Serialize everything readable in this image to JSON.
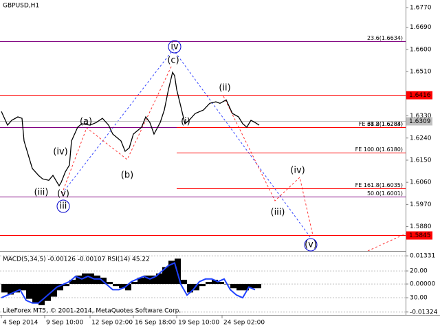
{
  "chart_data": [
    {
      "type": "line",
      "title": "GBPUSD,H1",
      "color": "#000000",
      "x": [
        0,
        3,
        5,
        8,
        10,
        11,
        13,
        15,
        18,
        20,
        23,
        25,
        28,
        29,
        31,
        33,
        34,
        37,
        39,
        43,
        46,
        49,
        52,
        54,
        58,
        60,
        62,
        64,
        68,
        70,
        72,
        74,
        77,
        79,
        81,
        83,
        84,
        85,
        87,
        89,
        91,
        94,
        98,
        101,
        104,
        106,
        109,
        112,
        115,
        117,
        119,
        121,
        123,
        125
      ],
      "values": [
        1.6348,
        1.6292,
        1.6312,
        1.6326,
        1.632,
        1.6228,
        1.6172,
        1.6116,
        1.6088,
        1.6074,
        1.6068,
        1.6088,
        1.6046,
        1.606,
        1.6102,
        1.613,
        1.6228,
        1.6284,
        1.6298,
        1.6292,
        1.6303,
        1.632,
        1.6292,
        1.6256,
        1.6228,
        1.6186,
        1.62,
        1.6256,
        1.6284,
        1.6326,
        1.6303,
        1.6256,
        1.6303,
        1.6354,
        1.6437,
        1.6507,
        1.6493,
        1.6437,
        1.6368,
        1.6298,
        1.6312,
        1.634,
        1.6354,
        1.6381,
        1.6387,
        1.6381,
        1.6395,
        1.634,
        1.6326,
        1.6298,
        1.6284,
        1.6312,
        1.6303,
        1.6292
      ],
      "xlim": [
        0,
        196
      ],
      "ylim": [
        1.5781,
        1.6801
      ],
      "yticks": [
        {
          "value": 1.677,
          "label": "1.6770"
        },
        {
          "value": 1.669,
          "label": "1.6690"
        },
        {
          "value": 1.66,
          "label": "1.6600"
        },
        {
          "value": 1.651,
          "label": "1.6510"
        },
        {
          "value": 1.633,
          "label": "1.6330"
        },
        {
          "value": 1.624,
          "label": "1.6240"
        },
        {
          "value": 1.615,
          "label": "1.6150"
        },
        {
          "value": 1.606,
          "label": "1.6060"
        },
        {
          "value": 1.597,
          "label": "1.5970"
        },
        {
          "value": 1.588,
          "label": "1.5880"
        }
      ],
      "xticks": [
        {
          "value": 0,
          "label": "4 Sep 2014"
        },
        {
          "value": 21,
          "label": "9 Sep 10:00"
        },
        {
          "value": 43,
          "label": "12 Sep 02:00"
        },
        {
          "value": 64,
          "label": "16 Sep 18:00"
        },
        {
          "value": 85,
          "label": "19 Sep 10:00"
        },
        {
          "value": 107,
          "label": "24 Sep 02:00"
        }
      ],
      "levels": [
        {
          "label": "23.6(1.6634)",
          "value": 1.6634,
          "color": "#800080"
        },
        {
          "label": "38.2(1.6284)",
          "value": 1.6284,
          "color": "#800080"
        },
        {
          "label": "FE 61.8(1.6283)",
          "value": 1.6283,
          "color": "#ff0000",
          "x0": 85
        },
        {
          "label": "FE 100.0(1.6180)",
          "value": 1.618,
          "color": "#ff0000",
          "x0": 85
        },
        {
          "label": "FE 161.8(1.6035)",
          "value": 1.6035,
          "color": "#ff0000",
          "x0": 85
        },
        {
          "label": "50.0(1.6001)",
          "value": 1.6001,
          "color": "#800080"
        }
      ],
      "price_labels": [
        {
          "value": 1.6416,
          "color": "#ff0000"
        },
        {
          "value": 1.5845,
          "color": "#ff0000"
        },
        {
          "value": 1.6309,
          "color": "#c0c0c0"
        }
      ],
      "annotations": [
        {
          "text": "(iii)",
          "color": "#ff0000"
        },
        {
          "text": "(iv)",
          "color": "#ff0000"
        },
        {
          "text": "(v)",
          "color": "#ff0000"
        },
        {
          "text": "iii",
          "color": "#0000cc",
          "circle": true
        },
        {
          "text": "(a)",
          "color": "#ff0000"
        },
        {
          "text": "(b)",
          "color": "#ff0000"
        },
        {
          "text": "(c)",
          "color": "#ff0000"
        },
        {
          "text": "iv",
          "color": "#0000cc",
          "circle": true
        },
        {
          "text": "(i)",
          "color": "#ff0000"
        },
        {
          "text": "(ii)",
          "color": "#ff0000"
        },
        {
          "text": "(iii)",
          "color": "#ff0000"
        },
        {
          "text": "(iv)",
          "color": "#ff0000"
        },
        {
          "text": "(v)",
          "color": "#ff0000"
        }
      ]
    },
    {
      "type": "bar",
      "title": "MACD(5,34,5) -0.00126 -0.00107 RSI(14) 45.22",
      "color": "#000000",
      "copyright": "LiteForex MT5, © 2001-2014, MetaQuotes Software Corp.",
      "x": [
        0,
        3,
        6,
        9,
        12,
        15,
        18,
        21,
        24,
        27,
        30,
        33,
        36,
        39,
        42,
        45,
        48,
        51,
        54,
        57,
        60,
        63,
        66,
        69,
        72,
        75,
        78,
        81,
        84,
        87,
        90,
        93,
        96,
        99,
        102,
        105,
        108,
        111,
        114,
        117,
        120,
        123
      ],
      "values": [
        -0.004,
        -0.005,
        -0.004,
        -0.003,
        -0.007,
        -0.009,
        -0.01,
        -0.008,
        -0.006,
        -0.003,
        -0.001,
        0.002,
        0.004,
        0.005,
        0.005,
        0.004,
        0.003,
        0.001,
        -0.001,
        -0.002,
        -0.003,
        0.001,
        0.003,
        0.004,
        0.004,
        0.005,
        0.008,
        0.011,
        0.012,
        0.002,
        -0.004,
        -0.003,
        -0.001,
        0.001,
        0.002,
        0.001,
        0,
        -0.002,
        -0.003,
        -0.003,
        -0.002,
        -0.002
      ],
      "rsi": {
        "color": "#1e40ff",
        "axis": "y2",
        "values": [
          30,
          29,
          28,
          27,
          31,
          32,
          32,
          30,
          28,
          26,
          25,
          24,
          22,
          23,
          22,
          23,
          23,
          25,
          27,
          27,
          26,
          24,
          23,
          22,
          23,
          22,
          20,
          18,
          17,
          25,
          29,
          27,
          24,
          23,
          23,
          24,
          23,
          27,
          29,
          30,
          26,
          27
        ]
      },
      "xlim": [
        0,
        196
      ],
      "ylim": [
        -0.0146,
        0.0153
      ],
      "yticks": [
        0.01331,
        {
          "value": 0,
          "label": "0.00000"
        },
        -0.01324
      ],
      "y2lim": [
        36.4,
        12.8
      ],
      "y2ticks": [
        {
          "value": 20,
          "label": "20.00"
        },
        {
          "value": 30,
          "label": "30.00"
        }
      ]
    }
  ]
}
